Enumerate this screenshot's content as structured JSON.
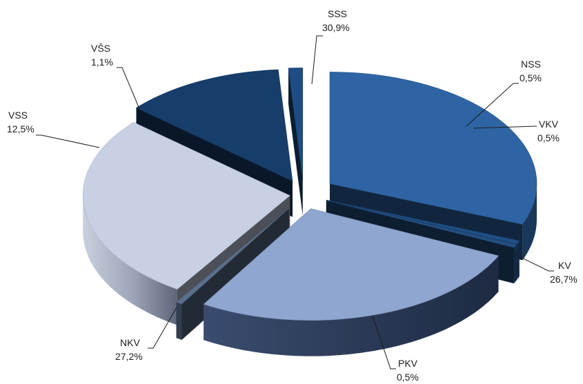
{
  "chart_data": {
    "type": "pie",
    "title": "",
    "categories": [
      "SSS",
      "NSS",
      "VKV",
      "KV",
      "PKV",
      "NKV",
      "VSS",
      "VŠS"
    ],
    "values": [
      30.9,
      0.5,
      0.5,
      26.7,
      0.5,
      27.2,
      12.5,
      1.1
    ],
    "value_labels": [
      "30,9%",
      "0,5%",
      "0,5%",
      "26,7%",
      "0,5%",
      "27,2%",
      "12,5%",
      "1,1%"
    ],
    "three_d": true,
    "exploded": true,
    "colors": {
      "SSS": "#2e64a3",
      "NSS": "#1f4f86",
      "VKV": "#234f80",
      "KV": "#8ea6d0",
      "PKV": "#5a6f8c",
      "NKV": "#c8d1e4",
      "VSS": "#173d6b",
      "VŠS": "#1f4c82"
    },
    "legend": "none"
  }
}
